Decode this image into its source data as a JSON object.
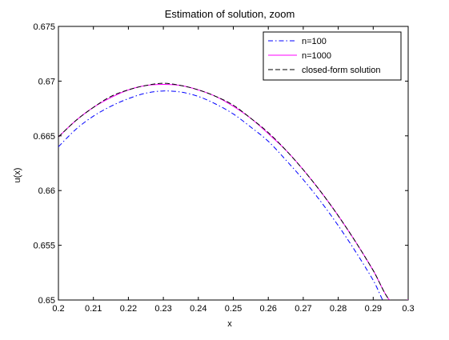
{
  "chart_data": {
    "type": "line",
    "title": "Estimation of solution, zoom",
    "xlabel": "x",
    "ylabel": "u(x)",
    "xlim": [
      0.2,
      0.3
    ],
    "ylim": [
      0.65,
      0.675
    ],
    "xticks": [
      0.2,
      0.21,
      0.22,
      0.23,
      0.24,
      0.25,
      0.26,
      0.27,
      0.28,
      0.29,
      0.3
    ],
    "xtick_labels": [
      "0.2",
      "0.21",
      "0.22",
      "0.23",
      "0.24",
      "0.25",
      "0.26",
      "0.27",
      "0.28",
      "0.29",
      "0.3"
    ],
    "yticks": [
      0.65,
      0.655,
      0.66,
      0.665,
      0.67,
      0.675
    ],
    "ytick_labels": [
      "0.65",
      "0.655",
      "0.66",
      "0.665",
      "0.67",
      "0.675"
    ],
    "grid": false,
    "legend_position": "top-right",
    "series": [
      {
        "name": "n=100",
        "color": "#0000ff",
        "dash": "dash-dot",
        "x": [
          0.2,
          0.205,
          0.21,
          0.215,
          0.22,
          0.225,
          0.23,
          0.235,
          0.24,
          0.245,
          0.25,
          0.255,
          0.26,
          0.265,
          0.27,
          0.275,
          0.28,
          0.285,
          0.29,
          0.295,
          0.3
        ],
        "y": [
          0.664,
          0.6656,
          0.6668,
          0.6677,
          0.6684,
          0.6689,
          0.6691,
          0.669,
          0.6686,
          0.6679,
          0.667,
          0.6658,
          0.6645,
          0.6628,
          0.661,
          0.659,
          0.6568,
          0.6544,
          0.6518,
          0.6489,
          0.6499
        ]
      },
      {
        "name": "n=1000",
        "color": "#ff00ff",
        "dash": "solid",
        "x": [
          0.2,
          0.205,
          0.21,
          0.215,
          0.22,
          0.225,
          0.23,
          0.235,
          0.24,
          0.245,
          0.25,
          0.255,
          0.26,
          0.265,
          0.27,
          0.275,
          0.28,
          0.285,
          0.29,
          0.295,
          0.3
        ],
        "y": [
          0.6649,
          0.6664,
          0.6676,
          0.6685,
          0.6692,
          0.6696,
          0.6697,
          0.6696,
          0.6692,
          0.6686,
          0.6677,
          0.6666,
          0.6652,
          0.6637,
          0.6619,
          0.6599,
          0.6577,
          0.6553,
          0.6527,
          0.6499,
          0.65
        ]
      },
      {
        "name": "closed-form solution",
        "color": "#000000",
        "dash": "dashed",
        "x": [
          0.2,
          0.205,
          0.21,
          0.215,
          0.22,
          0.225,
          0.23,
          0.235,
          0.24,
          0.245,
          0.25,
          0.255,
          0.26,
          0.265,
          0.27,
          0.275,
          0.28,
          0.285,
          0.29,
          0.295,
          0.3
        ],
        "y": [
          0.6649,
          0.6664,
          0.6676,
          0.6686,
          0.6692,
          0.6696,
          0.6698,
          0.6696,
          0.6692,
          0.6686,
          0.6678,
          0.6666,
          0.6653,
          0.6637,
          0.6619,
          0.6599,
          0.6577,
          0.6553,
          0.6527,
          0.6499,
          0.65
        ]
      }
    ]
  }
}
